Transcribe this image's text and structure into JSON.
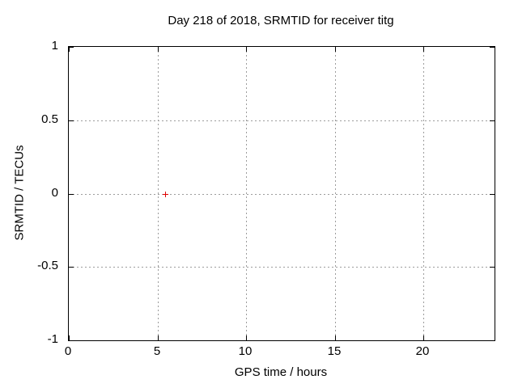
{
  "chart_data": {
    "type": "scatter",
    "title": "Day 218 of 2018, SRMTID for receiver titg",
    "xlabel": "GPS time / hours",
    "ylabel": "SRMTID / TECUs",
    "xlim": [
      0,
      24
    ],
    "ylim": [
      -1,
      1
    ],
    "xticks": [
      {
        "v": 0,
        "label": "0"
      },
      {
        "v": 5,
        "label": "5"
      },
      {
        "v": 10,
        "label": "10"
      },
      {
        "v": 15,
        "label": "15"
      },
      {
        "v": 20,
        "label": "20"
      }
    ],
    "yticks": [
      {
        "v": -1,
        "label": "-1"
      },
      {
        "v": -0.5,
        "label": "-0.5"
      },
      {
        "v": 0,
        "label": "0"
      },
      {
        "v": 0.5,
        "label": "0.5"
      },
      {
        "v": 1,
        "label": "1"
      }
    ],
    "grid": true,
    "grid_style": "dotted",
    "legend": "none",
    "series": [
      {
        "marker": "plus",
        "color": "#e00000",
        "points": [
          [
            5.45,
            0
          ]
        ]
      }
    ],
    "colors": {
      "grid": "#9c9c9c",
      "axis": "#000000",
      "text": "#000000",
      "background": "#ffffff"
    }
  }
}
